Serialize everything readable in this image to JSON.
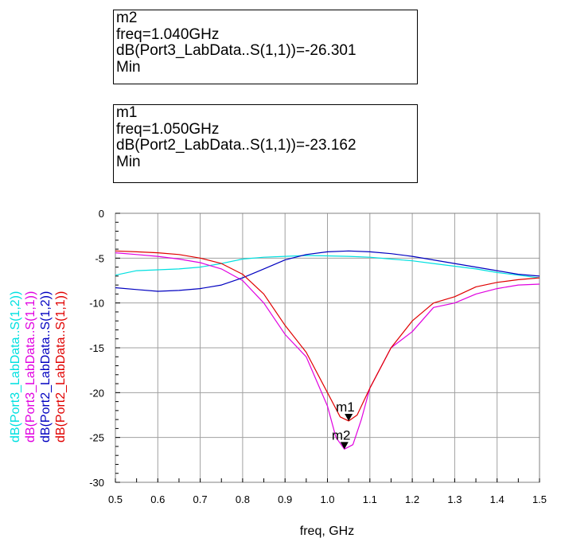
{
  "markers": [
    {
      "name": "m2",
      "freq": "freq=1.040GHz",
      "expr": "dB(Port3_LabData..S(1,1))=-26.301",
      "mode": "Min"
    },
    {
      "name": "m1",
      "freq": "freq=1.050GHz",
      "expr": "dB(Port2_LabData..S(1,1))=-23.162",
      "mode": "Min"
    }
  ],
  "chart_data": {
    "type": "line",
    "xlabel": "freq, GHz",
    "xlim": [
      0.5,
      1.5
    ],
    "ylim": [
      -30,
      0
    ],
    "xticks": [
      "0.5",
      "0.6",
      "0.7",
      "0.8",
      "0.9",
      "1.0",
      "1.1",
      "1.2",
      "1.3",
      "1.4",
      "1.5"
    ],
    "xtick_values": [
      0.5,
      0.6,
      0.7,
      0.8,
      0.9,
      1.0,
      1.1,
      1.2,
      1.3,
      1.4,
      1.5
    ],
    "yticks": [
      "0",
      "-5",
      "-10",
      "-15",
      "-20",
      "-25",
      "-30"
    ],
    "ytick_values": [
      0,
      -5,
      -10,
      -15,
      -20,
      -25,
      -30
    ],
    "grid": true,
    "legend_placement": "left-vertical",
    "series": [
      {
        "name": "dB(Port3_LabData..S(1,2))",
        "color": "#00e0e0",
        "x": [
          0.5,
          0.55,
          0.6,
          0.65,
          0.7,
          0.75,
          0.8,
          0.85,
          0.9,
          0.95,
          1.0,
          1.05,
          1.1,
          1.15,
          1.2,
          1.25,
          1.3,
          1.35,
          1.4,
          1.45,
          1.5
        ],
        "y": [
          -6.9,
          -6.4,
          -6.3,
          -6.2,
          -6.0,
          -5.6,
          -5.1,
          -4.9,
          -4.8,
          -4.7,
          -4.75,
          -4.8,
          -4.9,
          -5.1,
          -5.3,
          -5.6,
          -5.9,
          -6.2,
          -6.6,
          -6.9,
          -7.2
        ]
      },
      {
        "name": "dB(Port3_LabData..S(1,1))",
        "color": "#e000e0",
        "x": [
          0.5,
          0.55,
          0.6,
          0.65,
          0.7,
          0.75,
          0.8,
          0.85,
          0.9,
          0.95,
          1.0,
          1.02,
          1.04,
          1.06,
          1.08,
          1.1,
          1.15,
          1.2,
          1.25,
          1.3,
          1.35,
          1.4,
          1.45,
          1.5
        ],
        "y": [
          -4.4,
          -4.6,
          -4.8,
          -5.1,
          -5.5,
          -6.2,
          -7.5,
          -10.0,
          -13.5,
          -16.0,
          -21.5,
          -25.0,
          -26.3,
          -25.8,
          -23.0,
          -19.5,
          -15.0,
          -13.2,
          -10.5,
          -10.0,
          -9.0,
          -8.4,
          -8.0,
          -7.9
        ]
      },
      {
        "name": "dB(Port2_LabData..S(1,2))",
        "color": "#0000c0",
        "x": [
          0.5,
          0.55,
          0.6,
          0.65,
          0.7,
          0.75,
          0.8,
          0.85,
          0.9,
          0.95,
          1.0,
          1.05,
          1.1,
          1.15,
          1.2,
          1.25,
          1.3,
          1.35,
          1.4,
          1.45,
          1.5
        ],
        "y": [
          -8.3,
          -8.5,
          -8.7,
          -8.6,
          -8.4,
          -8.0,
          -7.2,
          -6.2,
          -5.2,
          -4.6,
          -4.3,
          -4.2,
          -4.3,
          -4.5,
          -4.8,
          -5.2,
          -5.6,
          -6.0,
          -6.4,
          -6.8,
          -7.0
        ]
      },
      {
        "name": "dB(Port2_LabData..S(1,1))",
        "color": "#e00000",
        "x": [
          0.5,
          0.55,
          0.6,
          0.65,
          0.7,
          0.75,
          0.8,
          0.85,
          0.9,
          0.95,
          1.0,
          1.03,
          1.05,
          1.07,
          1.1,
          1.15,
          1.2,
          1.25,
          1.3,
          1.35,
          1.4,
          1.45,
          1.5
        ],
        "y": [
          -4.2,
          -4.3,
          -4.4,
          -4.6,
          -5.0,
          -5.6,
          -6.8,
          -9.0,
          -12.5,
          -15.5,
          -20.0,
          -22.7,
          -23.16,
          -22.5,
          -19.5,
          -15.0,
          -12.0,
          -10.0,
          -9.3,
          -8.2,
          -7.7,
          -7.4,
          -7.2
        ]
      }
    ],
    "annotations": [
      {
        "label": "m1",
        "x": 1.05,
        "y": -23.162,
        "color": "#000000"
      },
      {
        "label": "m2",
        "x": 1.04,
        "y": -26.301,
        "color": "#000000"
      }
    ]
  }
}
